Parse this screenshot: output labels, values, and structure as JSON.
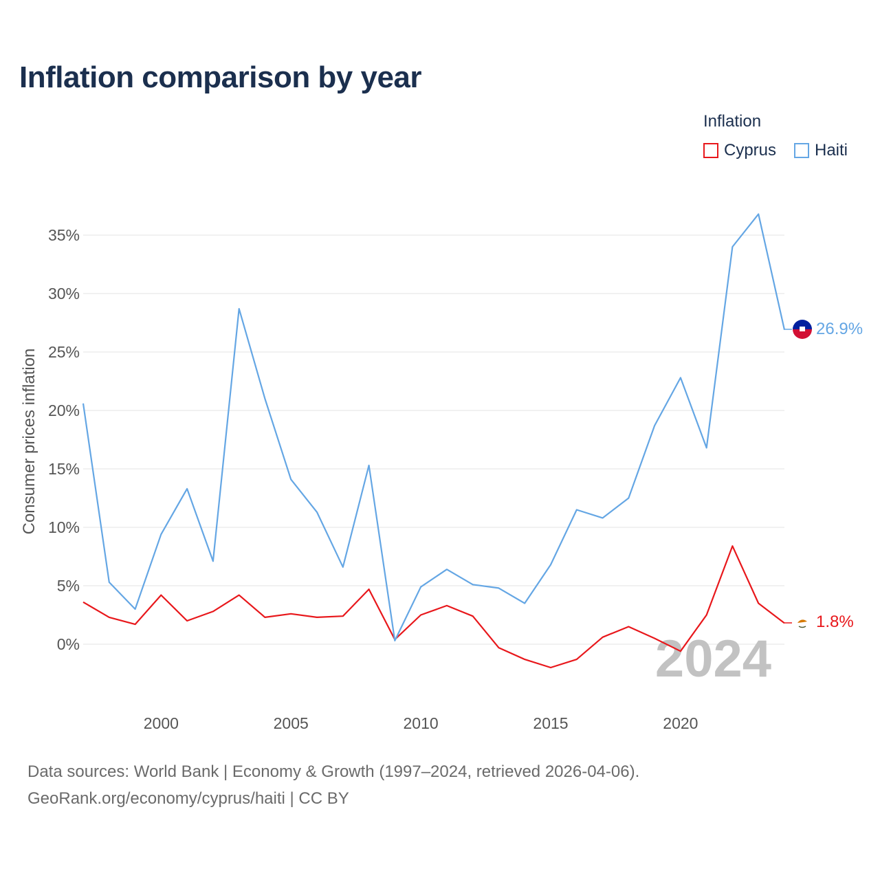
{
  "title": "Inflation comparison by year",
  "legend": {
    "title": "Inflation",
    "items": [
      {
        "label": "Cyprus",
        "color": "#e8171b"
      },
      {
        "label": "Haiti",
        "color": "#64a6e4"
      }
    ]
  },
  "source": {
    "line1": "Data sources: World Bank | Economy & Growth (1997–2024, retrieved 2026-04-06).",
    "line2": "GeoRank.org/economy/cyprus/haiti | CC BY"
  },
  "year_watermark": "2024",
  "end_labels": {
    "haiti": "26.9%",
    "cyprus": "1.8%"
  },
  "chart_data": {
    "type": "line",
    "title": "Inflation comparison by year",
    "xlabel": "",
    "ylabel": "Consumer prices inflation",
    "x": [
      1997,
      1998,
      1999,
      2000,
      2001,
      2002,
      2003,
      2004,
      2005,
      2006,
      2007,
      2008,
      2009,
      2010,
      2011,
      2012,
      2013,
      2014,
      2015,
      2016,
      2017,
      2018,
      2019,
      2020,
      2021,
      2022,
      2023,
      2024
    ],
    "xlim": [
      1997,
      2024
    ],
    "ylim": [
      -3.5,
      38
    ],
    "x_ticks": [
      2000,
      2005,
      2010,
      2015,
      2020
    ],
    "x_tick_labels": [
      "2000",
      "2005",
      "2010",
      "2015",
      "2020"
    ],
    "y_ticks": [
      0,
      5,
      10,
      15,
      20,
      25,
      30,
      35
    ],
    "y_tick_labels": [
      "0%",
      "5%",
      "10%",
      "15%",
      "20%",
      "25%",
      "30%",
      "35%"
    ],
    "grid": true,
    "legend_position": "top-right",
    "series": [
      {
        "name": "Cyprus",
        "color": "#e8171b",
        "values": [
          3.6,
          2.3,
          1.7,
          4.2,
          2.0,
          2.8,
          4.2,
          2.3,
          2.6,
          2.3,
          2.4,
          4.7,
          0.4,
          2.5,
          3.3,
          2.4,
          -0.3,
          -1.3,
          -2.0,
          -1.3,
          0.6,
          1.5,
          0.5,
          -0.6,
          2.5,
          8.4,
          3.5,
          1.8
        ]
      },
      {
        "name": "Haiti",
        "color": "#64a6e4",
        "values": [
          20.6,
          5.3,
          3.0,
          9.4,
          13.3,
          7.1,
          28.7,
          21.0,
          14.1,
          11.3,
          6.6,
          15.3,
          0.3,
          4.9,
          6.4,
          5.1,
          4.8,
          3.5,
          6.8,
          11.5,
          10.8,
          12.5,
          18.7,
          22.8,
          16.8,
          34.0,
          36.8,
          26.9
        ]
      }
    ]
  }
}
